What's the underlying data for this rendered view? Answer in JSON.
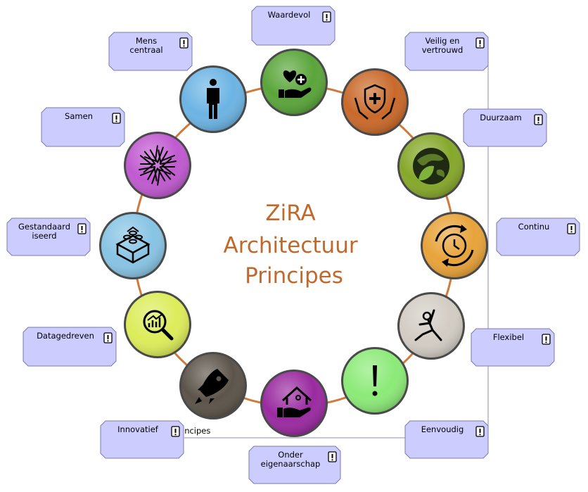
{
  "title_lines": [
    "ZiRA",
    "Architectuur",
    "Principes"
  ],
  "partial_label": "incipes",
  "colors": {
    "title": "#c0692c",
    "ring": "#d07a3a",
    "box_fill": "#ccccff",
    "box_stroke": "#7a7aa8",
    "frame": "#8c8ca8"
  },
  "principles": [
    {
      "label": [
        "Waardevol"
      ],
      "color": "#5aa53a",
      "icon": "hand-heart-icon"
    },
    {
      "label": [
        "Veilig en",
        "vertrouwd"
      ],
      "color": "#c9692a",
      "icon": "shield-hands-icon"
    },
    {
      "label": [
        "Duurzaam"
      ],
      "color": "#86a82a",
      "icon": "globe-leaf-icon"
    },
    {
      "label": [
        "Continu"
      ],
      "color": "#e8a33a",
      "icon": "clock-cycle-icon"
    },
    {
      "label": [
        "Flexibel"
      ],
      "color": "#d2ccc4",
      "icon": "stretch-figure-icon"
    },
    {
      "label": [
        "Eenvoudig"
      ],
      "color": "#8cea78",
      "icon": "exclamation-icon"
    },
    {
      "label": [
        "Onder",
        "eigenaarschap"
      ],
      "color": "#9a2aa0",
      "icon": "house-hand-icon"
    },
    {
      "label": [
        "Innovatief"
      ],
      "color": "#5c544a",
      "icon": "rocket-icon"
    },
    {
      "label": [
        "Datagedreven"
      ],
      "color": "#dcec5a",
      "icon": "chart-magnifier-icon"
    },
    {
      "label": [
        "Gestandaard",
        "iseerd"
      ],
      "color": "#88c4e4",
      "icon": "blocks-icon"
    },
    {
      "label": [
        "Samen"
      ],
      "color": "#c05ad0",
      "icon": "hands-circle-icon"
    },
    {
      "label": [
        "Mens",
        "centraal"
      ],
      "color": "#6cb4e4",
      "icon": "person-icon"
    }
  ]
}
